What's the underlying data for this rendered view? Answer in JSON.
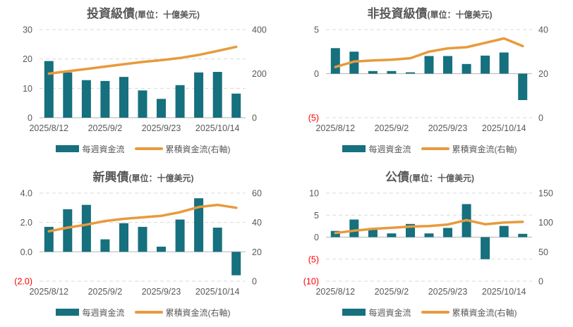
{
  "colors": {
    "bar": "#16707E",
    "line": "#E89A3C",
    "axis_text": "#595959",
    "negative_tick": "#FF0000",
    "gridline": "#D9D9D9",
    "baseline": "#C0C0C0",
    "title_text": "#595959"
  },
  "legend": {
    "bar_label": "每週資金流",
    "line_label": "累積資金流(右軸)"
  },
  "chart_data": [
    {
      "type": "bar+line-dual-axis",
      "title": "投資級債",
      "unit_label": "(單位：十億美元)",
      "x_ticks": [
        {
          "position": 0,
          "label": "2025/8/12"
        },
        {
          "position": 3,
          "label": "2025/9/2"
        },
        {
          "position": 6,
          "label": "2025/9/23"
        },
        {
          "position": 9,
          "label": "2025/10/14"
        }
      ],
      "left_axis": {
        "min": 0,
        "max": 30,
        "ticks": [
          {
            "value": 0,
            "label": "0",
            "negative": false
          },
          {
            "value": 10,
            "label": "10",
            "negative": false
          },
          {
            "value": 20,
            "label": "20",
            "negative": false
          },
          {
            "value": 30,
            "label": "30",
            "negative": false
          }
        ]
      },
      "right_axis": {
        "min": 0,
        "max": 400,
        "ticks": [
          {
            "value": 0,
            "label": "0"
          },
          {
            "value": 200,
            "label": "200"
          },
          {
            "value": 400,
            "label": "400"
          }
        ]
      },
      "series": [
        {
          "name": "每週資金流",
          "type": "bar",
          "axis": "left",
          "values": [
            19.3,
            15.4,
            12.8,
            12.5,
            13.9,
            9.3,
            6.4,
            11.1,
            15.4,
            15.6,
            8.2
          ]
        },
        {
          "name": "累積資金流(右軸)",
          "type": "line",
          "axis": "right",
          "values": [
            200,
            211,
            221,
            232,
            243,
            253,
            261,
            271,
            285,
            303,
            322
          ]
        }
      ]
    },
    {
      "type": "bar+line-dual-axis",
      "title": "非投資級債",
      "unit_label": "(單位：十億美元)",
      "x_ticks": [
        {
          "position": 0,
          "label": "2025/8/12"
        },
        {
          "position": 3,
          "label": "2025/9/2"
        },
        {
          "position": 6,
          "label": "2025/9/23"
        },
        {
          "position": 9,
          "label": "2025/10/14"
        }
      ],
      "left_axis": {
        "min": -5,
        "max": 5,
        "ticks": [
          {
            "value": -5,
            "label": "(5)",
            "negative": true
          },
          {
            "value": 0,
            "label": "0",
            "negative": false
          },
          {
            "value": 5,
            "label": "5",
            "negative": false
          }
        ]
      },
      "right_axis": {
        "min": 0,
        "max": 40,
        "ticks": [
          {
            "value": 0,
            "label": "0"
          },
          {
            "value": 20,
            "label": "20"
          },
          {
            "value": 40,
            "label": "40"
          }
        ]
      },
      "series": [
        {
          "name": "每週資金流",
          "type": "bar",
          "axis": "left",
          "values": [
            2.9,
            2.5,
            0.3,
            0.3,
            0.15,
            2.0,
            2.0,
            1.1,
            2.05,
            2.4,
            -3.0
          ]
        },
        {
          "name": "累積資金流(右軸)",
          "type": "line",
          "axis": "right",
          "values": [
            23,
            25.5,
            26,
            26.3,
            27,
            30,
            31.5,
            32,
            34,
            36,
            32.5
          ]
        }
      ]
    },
    {
      "type": "bar+line-dual-axis",
      "title": "新興債",
      "unit_label": "(單位：十億美元)",
      "x_ticks": [
        {
          "position": 0,
          "label": "2025/8/12"
        },
        {
          "position": 3,
          "label": "2025/9/2"
        },
        {
          "position": 6,
          "label": "2025/9/23"
        },
        {
          "position": 9,
          "label": "2025/10/14"
        }
      ],
      "left_axis": {
        "min": -2,
        "max": 4,
        "ticks": [
          {
            "value": -2,
            "label": "(2.0)",
            "negative": true
          },
          {
            "value": 0,
            "label": "0.0",
            "negative": false
          },
          {
            "value": 2,
            "label": "2.0",
            "negative": false
          },
          {
            "value": 4,
            "label": "4.0",
            "negative": false
          }
        ]
      },
      "right_axis": {
        "min": 0,
        "max": 60,
        "ticks": [
          {
            "value": 0,
            "label": "0"
          },
          {
            "value": 20,
            "label": "20"
          },
          {
            "value": 40,
            "label": "40"
          },
          {
            "value": 60,
            "label": "60"
          }
        ]
      },
      "series": [
        {
          "name": "每週資金流",
          "type": "bar",
          "axis": "left",
          "values": [
            1.7,
            2.9,
            3.2,
            0.85,
            1.95,
            1.7,
            0.35,
            2.2,
            3.65,
            1.65,
            -1.6
          ]
        },
        {
          "name": "累積資金流(右軸)",
          "type": "line",
          "axis": "right",
          "values": [
            34,
            36.5,
            38.5,
            41,
            42.5,
            43.5,
            44.5,
            47,
            50.5,
            52,
            50
          ]
        }
      ]
    },
    {
      "type": "bar+line-dual-axis",
      "title": "公債",
      "unit_label": "(單位：十億美元)",
      "x_ticks": [
        {
          "position": 0,
          "label": "2025/8/12"
        },
        {
          "position": 3,
          "label": "2025/9/2"
        },
        {
          "position": 6,
          "label": "2025/9/23"
        },
        {
          "position": 9,
          "label": "2025/10/14"
        }
      ],
      "left_axis": {
        "min": -10,
        "max": 10,
        "ticks": [
          {
            "value": -10,
            "label": "(10)",
            "negative": true
          },
          {
            "value": -5,
            "label": "(5)",
            "negative": true
          },
          {
            "value": 0,
            "label": "0",
            "negative": false
          },
          {
            "value": 5,
            "label": "5",
            "negative": false
          },
          {
            "value": 10,
            "label": "10",
            "negative": false
          }
        ]
      },
      "right_axis": {
        "min": 0,
        "max": 150,
        "ticks": [
          {
            "value": 0,
            "label": "0"
          },
          {
            "value": 50,
            "label": "50"
          },
          {
            "value": 100,
            "label": "100"
          },
          {
            "value": 150,
            "label": "150"
          }
        ]
      },
      "series": [
        {
          "name": "每週資金流",
          "type": "bar",
          "axis": "left",
          "values": [
            1.4,
            4.0,
            2.1,
            0.85,
            3.0,
            0.85,
            2.1,
            7.5,
            -5.0,
            2.55,
            0.75
          ]
        },
        {
          "name": "累積資金流(右軸)",
          "type": "line",
          "axis": "right",
          "values": [
            82,
            86,
            89,
            91,
            93,
            94,
            96.5,
            104,
            97,
            100,
            101
          ]
        }
      ]
    }
  ]
}
